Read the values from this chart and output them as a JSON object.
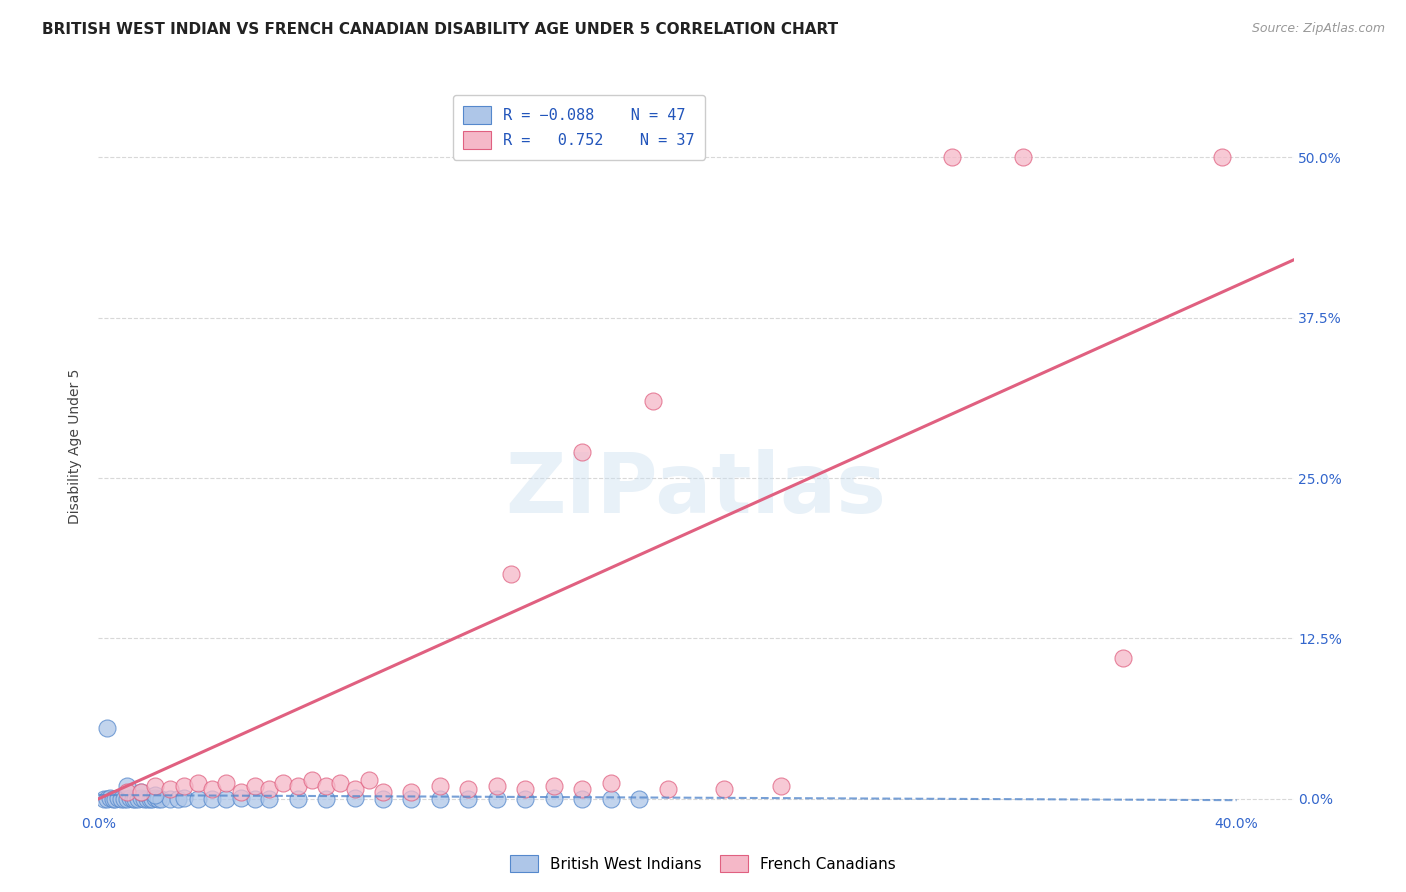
{
  "title": "BRITISH WEST INDIAN VS FRENCH CANADIAN DISABILITY AGE UNDER 5 CORRELATION CHART",
  "source": "Source: ZipAtlas.com",
  "ylabel": "Disability Age Under 5",
  "watermark": "ZIPatlas",
  "xlim": [
    0.0,
    0.42
  ],
  "ylim": [
    -0.01,
    0.56
  ],
  "xticks": [
    0.0,
    0.1,
    0.2,
    0.3,
    0.4
  ],
  "yticks": [
    0.0,
    0.125,
    0.25,
    0.375,
    0.5
  ],
  "ytick_labels": [
    "0.0%",
    "12.5%",
    "25.0%",
    "37.5%",
    "50.0%"
  ],
  "xtick_labels": [
    "0.0%",
    "",
    "",
    "",
    "40.0%"
  ],
  "blue_R": -0.088,
  "blue_N": 47,
  "pink_R": 0.752,
  "pink_N": 37,
  "blue_color": "#aec6e8",
  "pink_color": "#f5b8c8",
  "blue_edge_color": "#5588cc",
  "pink_edge_color": "#e06080",
  "blue_scatter": [
    [
      0.002,
      0.0
    ],
    [
      0.003,
      0.0
    ],
    [
      0.004,
      0.001
    ],
    [
      0.005,
      0.0
    ],
    [
      0.006,
      0.0
    ],
    [
      0.007,
      0.001
    ],
    [
      0.008,
      0.0
    ],
    [
      0.009,
      0.0
    ],
    [
      0.01,
      0.0
    ],
    [
      0.011,
      0.001
    ],
    [
      0.012,
      0.0
    ],
    [
      0.013,
      0.0
    ],
    [
      0.014,
      0.0
    ],
    [
      0.015,
      0.001
    ],
    [
      0.016,
      0.0
    ],
    [
      0.017,
      0.0
    ],
    [
      0.018,
      0.0
    ],
    [
      0.019,
      0.0
    ],
    [
      0.02,
      0.001
    ],
    [
      0.021,
      0.0
    ],
    [
      0.022,
      0.0
    ],
    [
      0.025,
      0.0
    ],
    [
      0.028,
      0.0
    ],
    [
      0.03,
      0.001
    ],
    [
      0.035,
      0.0
    ],
    [
      0.04,
      0.0
    ],
    [
      0.045,
      0.0
    ],
    [
      0.05,
      0.001
    ],
    [
      0.055,
      0.0
    ],
    [
      0.06,
      0.0
    ],
    [
      0.07,
      0.0
    ],
    [
      0.08,
      0.0
    ],
    [
      0.09,
      0.001
    ],
    [
      0.1,
      0.0
    ],
    [
      0.11,
      0.0
    ],
    [
      0.12,
      0.0
    ],
    [
      0.13,
      0.0
    ],
    [
      0.14,
      0.0
    ],
    [
      0.15,
      0.0
    ],
    [
      0.16,
      0.001
    ],
    [
      0.17,
      0.0
    ],
    [
      0.18,
      0.0
    ],
    [
      0.19,
      0.0
    ],
    [
      0.003,
      0.055
    ],
    [
      0.01,
      0.01
    ],
    [
      0.015,
      0.005
    ],
    [
      0.02,
      0.003
    ]
  ],
  "pink_scatter": [
    [
      0.01,
      0.005
    ],
    [
      0.015,
      0.005
    ],
    [
      0.02,
      0.01
    ],
    [
      0.025,
      0.008
    ],
    [
      0.03,
      0.01
    ],
    [
      0.035,
      0.012
    ],
    [
      0.04,
      0.008
    ],
    [
      0.045,
      0.012
    ],
    [
      0.05,
      0.005
    ],
    [
      0.055,
      0.01
    ],
    [
      0.06,
      0.008
    ],
    [
      0.065,
      0.012
    ],
    [
      0.07,
      0.01
    ],
    [
      0.075,
      0.015
    ],
    [
      0.08,
      0.01
    ],
    [
      0.085,
      0.012
    ],
    [
      0.09,
      0.008
    ],
    [
      0.095,
      0.015
    ],
    [
      0.1,
      0.005
    ],
    [
      0.11,
      0.005
    ],
    [
      0.12,
      0.01
    ],
    [
      0.13,
      0.008
    ],
    [
      0.14,
      0.01
    ],
    [
      0.15,
      0.008
    ],
    [
      0.16,
      0.01
    ],
    [
      0.17,
      0.008
    ],
    [
      0.18,
      0.012
    ],
    [
      0.2,
      0.008
    ],
    [
      0.22,
      0.008
    ],
    [
      0.24,
      0.01
    ],
    [
      0.145,
      0.175
    ],
    [
      0.17,
      0.27
    ],
    [
      0.195,
      0.31
    ],
    [
      0.3,
      0.5
    ],
    [
      0.325,
      0.5
    ],
    [
      0.36,
      0.11
    ],
    [
      0.395,
      0.5
    ]
  ],
  "blue_trend_x": [
    0.0,
    0.4
  ],
  "blue_trend_y": [
    0.003,
    -0.001
  ],
  "pink_trend_x": [
    0.0,
    0.42
  ],
  "pink_trend_y": [
    0.0,
    0.42
  ],
  "grid_color": "#d8d8d8",
  "background_color": "#ffffff",
  "title_fontsize": 11,
  "axis_label_fontsize": 10,
  "tick_fontsize": 10,
  "legend_fontsize": 11
}
